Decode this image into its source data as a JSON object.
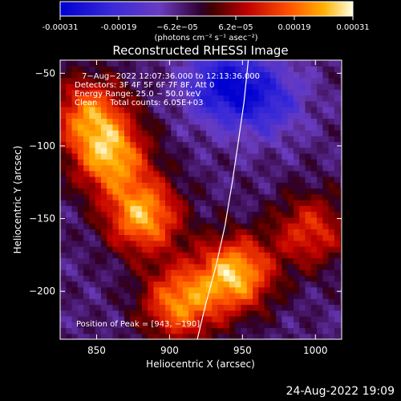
{
  "chart_data": {
    "type": "heatmap",
    "title": "Reconstructed RHESSI Image",
    "xlabel": "Heliocentric X (arcsec)",
    "ylabel": "Heliocentric Y (arcsec)",
    "xlim": [
      825,
      1018
    ],
    "ylim": [
      -233,
      -41
    ],
    "x_ticks": [
      850,
      900,
      950,
      1000
    ],
    "y_ticks": [
      -50,
      -100,
      -150,
      -200
    ],
    "x_tick_labels": [
      "850",
      "900",
      "950",
      "1000"
    ],
    "y_tick_labels": [
      "−50",
      "−100",
      "−150",
      "−200"
    ],
    "colorbar": {
      "range": [
        -0.00031,
        0.00031
      ],
      "tick_labels": [
        "-0.00031",
        "-0.00019",
        "−6.2e−05",
        "6.2e−05",
        "0.00019",
        "0.00031"
      ],
      "unit_label": "(photons cm⁻² s⁻¹ asec⁻²)"
    },
    "annotations": [
      "7−Aug−2022 12:07:36.000 to 12:13:36.000",
      "Detectors: 3F 4F 5F 6F 7F 8F, Att 0",
      "Energy Range: 25.0 − 50.0 keV",
      "Clean     Total counts: 6.05E+03",
      "Position of Peak = [943, −190]"
    ],
    "limb_curve": [
      [
        919,
        -233
      ],
      [
        925,
        -208
      ],
      [
        932,
        -182
      ],
      [
        938,
        -155
      ],
      [
        943,
        -125
      ],
      [
        947,
        -98
      ],
      [
        951,
        -70
      ],
      [
        954,
        -41
      ]
    ],
    "regions": [
      {
        "x": 858,
        "y": -110,
        "value": 0.00027
      },
      {
        "x": 880,
        "y": -150,
        "value": 0.00029
      },
      {
        "x": 843,
        "y": -80,
        "value": 0.00024
      },
      {
        "x": 905,
        "y": -210,
        "value": 0.00026
      },
      {
        "x": 943,
        "y": -190,
        "value": 0.00031
      },
      {
        "x": 995,
        "y": -160,
        "value": 0.00018
      },
      {
        "x": 965,
        "y": -70,
        "value": -0.00015
      },
      {
        "x": 935,
        "y": -60,
        "value": -0.00022
      }
    ]
  },
  "footer": {
    "date": "24-Aug-2022 19:09"
  }
}
